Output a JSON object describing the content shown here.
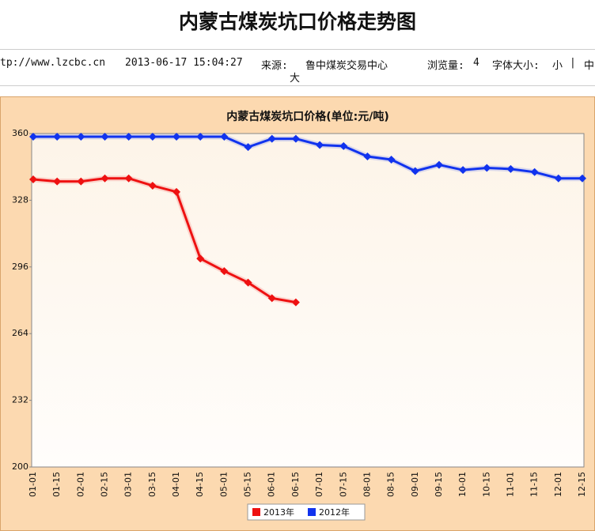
{
  "header": {
    "title": "内蒙古煤炭坑口价格走势图",
    "url": "tp://www.lzcbc.cn",
    "datetime": "2013-06-17 15:04:27",
    "source_label": "来源:",
    "source": "鲁中煤炭交易中心",
    "views_label": "浏览量:",
    "views": "4",
    "font_size_label": "字体大小:",
    "font_small": "小",
    "font_sep": "|",
    "font_medium": "中",
    "font_large": "大"
  },
  "chart_data": {
    "type": "line",
    "title": "内蒙古煤炭坑口价格(单位:元/吨)",
    "categories": [
      "01-01",
      "01-15",
      "02-01",
      "02-15",
      "03-01",
      "03-15",
      "04-01",
      "04-15",
      "05-01",
      "05-15",
      "06-01",
      "06-15",
      "07-01",
      "07-15",
      "08-01",
      "08-15",
      "09-01",
      "09-15",
      "10-01",
      "10-15",
      "11-01",
      "11-15",
      "12-01",
      "12-15"
    ],
    "series": [
      {
        "name": "2013年",
        "color": "#ee1111",
        "values": [
          338,
          337,
          337,
          338.5,
          338.5,
          335,
          332,
          300,
          294,
          288.5,
          281,
          279,
          null,
          null,
          null,
          null,
          null,
          null,
          null,
          null,
          null,
          null,
          null,
          null
        ]
      },
      {
        "name": "2012年",
        "color": "#1133ee",
        "values": [
          358.5,
          358.5,
          358.5,
          358.5,
          358.5,
          358.5,
          358.5,
          358.5,
          358.5,
          353.5,
          357.5,
          357.5,
          354.5,
          354,
          349,
          347.5,
          342,
          345,
          342.5,
          343.5,
          343,
          341.5,
          338.5,
          338.5
        ]
      }
    ],
    "ylim": [
      200,
      360
    ],
    "yticks": [
      200,
      232,
      264,
      296,
      328,
      360
    ],
    "grid": false,
    "legend": "bottom"
  }
}
